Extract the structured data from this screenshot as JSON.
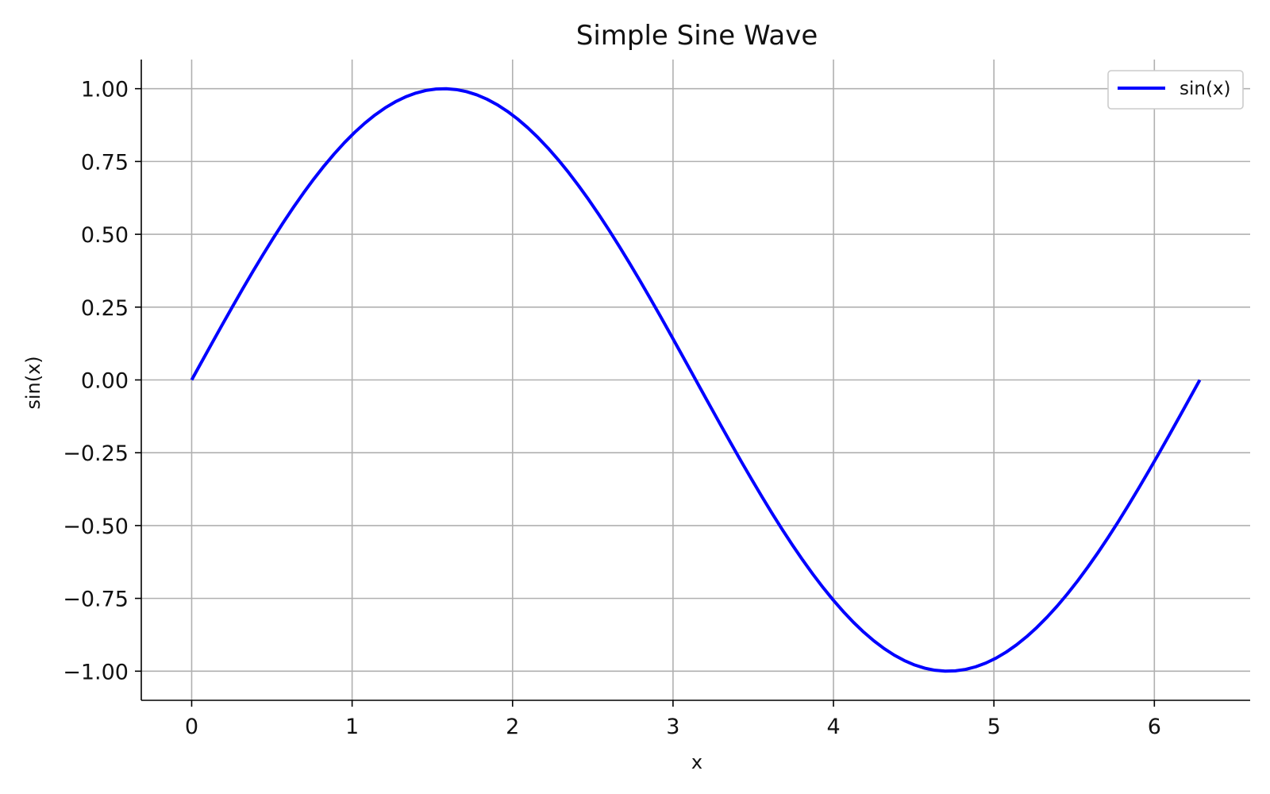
{
  "chart_data": {
    "type": "line",
    "title": "Simple Sine Wave",
    "xlabel": "x",
    "ylabel": "sin(x)",
    "xlim": [
      -0.314,
      6.597
    ],
    "ylim": [
      -1.1,
      1.1
    ],
    "xticks": [
      0,
      1,
      2,
      3,
      4,
      5,
      6
    ],
    "xtick_labels": [
      "0",
      "1",
      "2",
      "3",
      "4",
      "5",
      "6"
    ],
    "yticks": [
      1.0,
      0.75,
      0.5,
      0.25,
      0.0,
      -0.25,
      -0.5,
      -0.75,
      -1.0
    ],
    "ytick_labels": [
      "1.00",
      "0.75",
      "0.50",
      "0.25",
      "0.00",
      "−0.25",
      "−0.50",
      "−0.75",
      "−1.00"
    ],
    "grid": true,
    "legend_position": "top-right",
    "series": [
      {
        "name": "sin(x)",
        "color": "#0000ff",
        "x_range": [
          0,
          6.283
        ],
        "function": "sin(x)"
      }
    ]
  }
}
